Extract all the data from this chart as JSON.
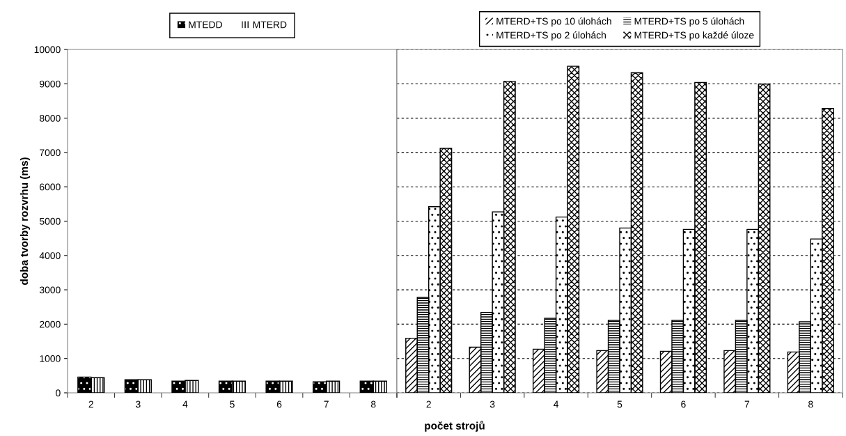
{
  "chart_data": [
    {
      "type": "bar",
      "categories": [
        "2",
        "3",
        "4",
        "5",
        "6",
        "7",
        "8"
      ],
      "ylabel": "doba tvorby rozvrhu (ms)",
      "xlabel": "počet strojů",
      "series": [
        {
          "name": "MTEDD",
          "color": "#000000",
          "values": [
            460,
            380,
            340,
            340,
            340,
            320,
            340
          ]
        },
        {
          "name": "MTERD",
          "color": "#ffffff",
          "values": [
            440,
            380,
            360,
            340,
            340,
            340,
            340
          ]
        }
      ],
      "ylim": [
        0,
        10000
      ],
      "yticks": [
        0,
        1000,
        2000,
        3000,
        4000,
        5000,
        6000,
        7000,
        8000,
        9000,
        10000
      ],
      "grid": false,
      "legend": "top"
    },
    {
      "type": "bar",
      "categories": [
        "2",
        "3",
        "4",
        "5",
        "6",
        "7",
        "8"
      ],
      "series": [
        {
          "name": "MTERD+TS po 10 úlohách",
          "color": "#ffffff",
          "values": [
            1590,
            1330,
            1270,
            1230,
            1210,
            1230,
            1190
          ]
        },
        {
          "name": "MTERD+TS po 5 úlohách",
          "color": "#ffffff",
          "values": [
            2780,
            2340,
            2170,
            2110,
            2110,
            2110,
            2070
          ]
        },
        {
          "name": "MTERD+TS po 2 úlohách",
          "color": "#ffffff",
          "values": [
            5420,
            5270,
            5120,
            4800,
            4760,
            4760,
            4480
          ]
        },
        {
          "name": "MTERD+TS po každé úloze",
          "color": "#ffffff",
          "values": [
            7120,
            9070,
            9510,
            9320,
            9040,
            8990,
            8280
          ]
        }
      ],
      "ylim": [
        0,
        10000
      ],
      "yticks": [
        0,
        1000,
        2000,
        3000,
        4000,
        5000,
        6000,
        7000,
        8000,
        9000,
        10000
      ],
      "grid": "y",
      "legend": "top",
      "tick_labels": "x"
    }
  ]
}
